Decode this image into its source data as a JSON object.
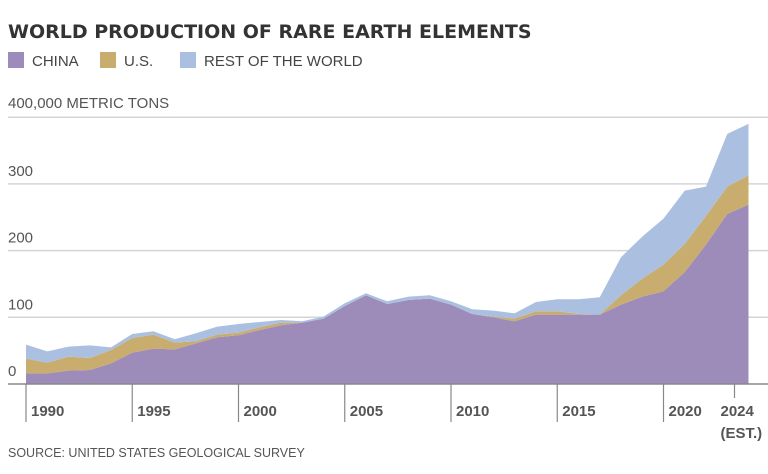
{
  "chart_data": {
    "type": "area",
    "stacked": true,
    "title": "WORLD PRODUCTION OF RARE EARTH ELEMENTS",
    "ylabel": "400,000 METRIC TONS",
    "y_unit": "thousand metric tons",
    "ylim": [
      0,
      400
    ],
    "yticks": [
      "0",
      "100",
      "200",
      "300"
    ],
    "grid": true,
    "legend_position": "top-left",
    "x": [
      1990,
      1991,
      1992,
      1993,
      1994,
      1995,
      1996,
      1997,
      1998,
      1999,
      2000,
      2001,
      2002,
      2003,
      2004,
      2005,
      2006,
      2007,
      2008,
      2009,
      2010,
      2011,
      2012,
      2013,
      2014,
      2015,
      2016,
      2017,
      2018,
      2019,
      2020,
      2021,
      2022,
      2023,
      2024
    ],
    "xticks": [
      {
        "year": 1990,
        "label": "1990",
        "sub": ""
      },
      {
        "year": 1995,
        "label": "1995",
        "sub": ""
      },
      {
        "year": 2000,
        "label": "2000",
        "sub": ""
      },
      {
        "year": 2005,
        "label": "2005",
        "sub": ""
      },
      {
        "year": 2010,
        "label": "2010",
        "sub": ""
      },
      {
        "year": 2015,
        "label": "2015",
        "sub": ""
      },
      {
        "year": 2020,
        "label": "2020",
        "sub": ""
      },
      {
        "year": 2024,
        "label": "2024",
        "sub": "(EST.)"
      }
    ],
    "series": [
      {
        "name": "CHINA",
        "color": "#9d8cb9",
        "values": [
          16,
          16,
          20,
          21,
          31,
          47,
          53,
          52,
          61,
          70,
          73,
          81,
          88,
          92,
          98,
          117,
          133,
          120,
          126,
          128,
          119,
          105,
          100,
          94,
          104,
          104,
          104,
          104,
          119,
          131,
          139,
          168,
          209,
          255,
          269
        ]
      },
      {
        "name": "U.S.",
        "color": "#c9ad6e",
        "values": [
          22,
          16,
          21,
          18,
          20,
          22,
          21,
          10,
          3,
          4,
          4,
          4,
          4,
          0,
          0,
          0,
          0,
          0,
          0,
          0,
          0,
          0,
          1,
          4,
          5,
          5,
          1,
          0,
          14,
          27,
          40,
          42,
          43,
          41,
          44
        ]
      },
      {
        "name": "REST OF THE WORLD",
        "color": "#abc0e0",
        "values": [
          21,
          17,
          15,
          19,
          4,
          6,
          5,
          5,
          12,
          12,
          13,
          8,
          4,
          2,
          3,
          4,
          3,
          4,
          5,
          5,
          5,
          7,
          9,
          8,
          14,
          18,
          22,
          26,
          57,
          63,
          69,
          80,
          44,
          79,
          77
        ]
      }
    ],
    "source": "SOURCE: UNITED STATES GEOLOGICAL SURVEY"
  }
}
